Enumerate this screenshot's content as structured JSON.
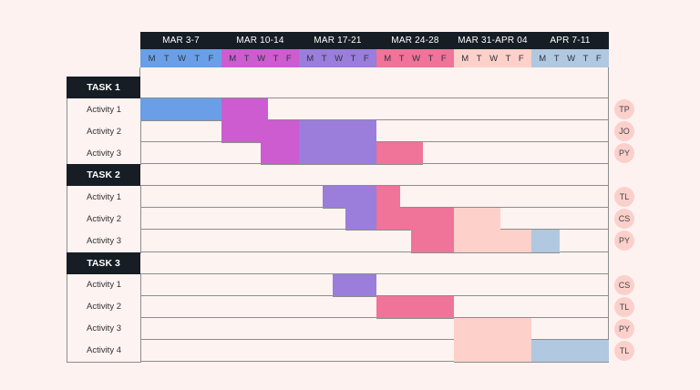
{
  "chart_data": {
    "type": "gantt",
    "weeks": [
      {
        "label": "MAR 3-7",
        "color": "#6a9fe8"
      },
      {
        "label": "MAR 10-14",
        "color": "#cc5ccf"
      },
      {
        "label": "MAR 17-21",
        "color": "#9b7ddb"
      },
      {
        "label": "MAR 24-28",
        "color": "#f07399"
      },
      {
        "label": "MAR 31-APR 04",
        "color": "#fdd0c9"
      },
      {
        "label": "APR 7-11",
        "color": "#b0c8e0"
      }
    ],
    "day_labels": [
      "M",
      "T",
      "W",
      "T",
      "F"
    ],
    "groups": [
      {
        "label": "TASK 1",
        "activities": [
          {
            "label": "Activity 1",
            "owner": "TP",
            "bars": [
              {
                "start": 0,
                "end": 5,
                "color": "#6a9fe8"
              },
              {
                "start": 5,
                "end": 8,
                "color": "#cc5ccf"
              }
            ]
          },
          {
            "label": "Activity 2",
            "owner": "JO",
            "bars": [
              {
                "start": 5,
                "end": 10,
                "color": "#cc5ccf"
              },
              {
                "start": 10,
                "end": 15,
                "color": "#9b7ddb"
              }
            ]
          },
          {
            "label": "Activity 3",
            "owner": "PY",
            "bars": [
              {
                "start": 7.5,
                "end": 10,
                "color": "#cc5ccf"
              },
              {
                "start": 10,
                "end": 15,
                "color": "#9b7ddb"
              },
              {
                "start": 15,
                "end": 18,
                "color": "#f07399"
              }
            ]
          }
        ]
      },
      {
        "label": "TASK 2",
        "activities": [
          {
            "label": "Activity 1",
            "owner": "TL",
            "bars": [
              {
                "start": 11.5,
                "end": 15,
                "color": "#9b7ddb"
              },
              {
                "start": 15,
                "end": 16.5,
                "color": "#f07399"
              }
            ]
          },
          {
            "label": "Activity 2",
            "owner": "CS",
            "bars": [
              {
                "start": 13,
                "end": 15,
                "color": "#9b7ddb"
              },
              {
                "start": 15,
                "end": 20,
                "color": "#f07399"
              },
              {
                "start": 20,
                "end": 23,
                "color": "#fdd0c9"
              }
            ]
          },
          {
            "label": "Activity 3",
            "owner": "PY",
            "bars": [
              {
                "start": 17.25,
                "end": 20,
                "color": "#f07399"
              },
              {
                "start": 20,
                "end": 25,
                "color": "#fdd0c9"
              },
              {
                "start": 25,
                "end": 26.8,
                "color": "#b0c8e0"
              }
            ]
          }
        ]
      },
      {
        "label": "TASK 3",
        "activities": [
          {
            "label": "Activity 1",
            "owner": "CS",
            "bars": [
              {
                "start": 12.2,
                "end": 15,
                "color": "#9b7ddb"
              }
            ]
          },
          {
            "label": "Activity 2",
            "owner": "TL",
            "bars": [
              {
                "start": 15,
                "end": 20,
                "color": "#f07399"
              }
            ]
          },
          {
            "label": "Activity 3",
            "owner": "PY",
            "bars": [
              {
                "start": 20,
                "end": 25,
                "color": "#fdd0c9"
              }
            ]
          },
          {
            "label": "Activity 4",
            "owner": "TL",
            "bars": [
              {
                "start": 20,
                "end": 25,
                "color": "#fdd0c9"
              },
              {
                "start": 25,
                "end": 30,
                "color": "#b0c8e0"
              }
            ]
          }
        ]
      }
    ]
  }
}
